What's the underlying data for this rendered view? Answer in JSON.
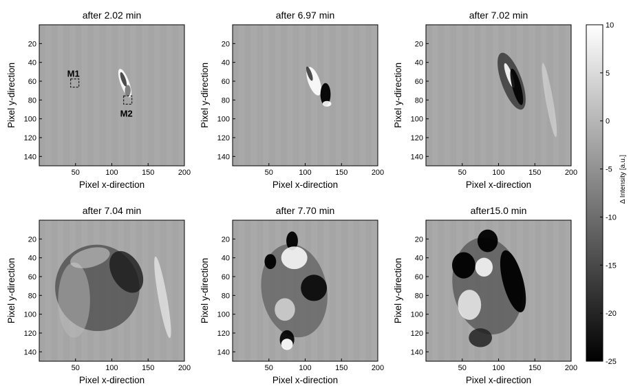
{
  "chart_data": {
    "type": "heatmap",
    "panels": [
      {
        "title": "after 2.02 min",
        "xlabel": "Pixel x-direction",
        "ylabel": "Pixel y-direction",
        "markers": [
          {
            "label": "M1",
            "x": 49,
            "y": 62
          },
          {
            "label": "M2",
            "x": 122,
            "y": 80
          }
        ]
      },
      {
        "title": "after 6.97 min",
        "xlabel": "Pixel x-direction",
        "ylabel": "Pixel y-direction",
        "markers": []
      },
      {
        "title": "after 7.02 min",
        "xlabel": "Pixel x-direction",
        "ylabel": "Pixel y-direction",
        "markers": []
      },
      {
        "title": "after 7.04 min",
        "xlabel": "Pixel x-direction",
        "ylabel": "Pixel y-direction",
        "markers": []
      },
      {
        "title": "after 7.70 min",
        "xlabel": "Pixel x-direction",
        "ylabel": "Pixel y-direction",
        "markers": []
      },
      {
        "title": "after15.0 min",
        "xlabel": "Pixel x-direction",
        "ylabel": "Pixel y-direction",
        "markers": []
      }
    ],
    "x_ticks": [
      "50",
      "100",
      "150",
      "200"
    ],
    "y_ticks": [
      "20",
      "40",
      "60",
      "80",
      "100",
      "120",
      "140"
    ],
    "xlim": [
      0,
      200
    ],
    "ylim": [
      0,
      150
    ],
    "y_axis_reversed": true,
    "colorbar": {
      "label": "Δ Intensity [a.u.]",
      "ticks": [
        "10",
        "5",
        "0",
        "-5",
        "-10",
        "-15",
        "-20",
        "-25"
      ],
      "range": [
        -25,
        10
      ],
      "colormap": "gray"
    }
  }
}
